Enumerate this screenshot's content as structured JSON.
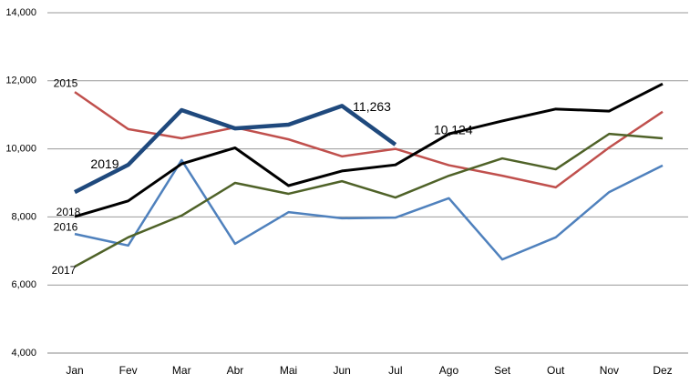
{
  "chart_data": {
    "type": "line",
    "categories": [
      "Jan",
      "Fev",
      "Mar",
      "Abr",
      "Mai",
      "Jun",
      "Jul",
      "Ago",
      "Set",
      "Out",
      "Nov",
      "Dez"
    ],
    "ylim": [
      4000,
      14000
    ],
    "yticks": [
      {
        "value": 4000,
        "label": "4,000"
      },
      {
        "value": 6000,
        "label": "6,000"
      },
      {
        "value": 8000,
        "label": "8,000"
      },
      {
        "value": 10000,
        "label": "10,000"
      },
      {
        "value": 12000,
        "label": "12,000"
      },
      {
        "value": 14000,
        "label": "14,000"
      }
    ],
    "grid": true,
    "series": [
      {
        "name": "2015",
        "color": "#c0504d",
        "values": [
          11670,
          10580,
          10310,
          10630,
          10280,
          9780,
          10000,
          9520,
          9210,
          8870,
          10040,
          11090
        ]
      },
      {
        "name": "2016",
        "color": "#4f81bd",
        "values": [
          7500,
          7160,
          9670,
          7210,
          8140,
          7960,
          7980,
          8550,
          6750,
          7400,
          8730,
          9510
        ]
      },
      {
        "name": "2017",
        "color": "#4f6228",
        "values": [
          6540,
          7400,
          8040,
          9000,
          8680,
          9050,
          8570,
          9210,
          9720,
          9400,
          10440,
          10310
        ]
      },
      {
        "name": "2018",
        "color": "#000000",
        "values": [
          8010,
          8470,
          9560,
          10030,
          8920,
          9350,
          9530,
          10440,
          10820,
          11170,
          11110,
          11910
        ]
      },
      {
        "name": "2019",
        "color": "#1f497d",
        "values": [
          8730,
          9530,
          11140,
          10600,
          10710,
          11263,
          10124,
          null,
          null,
          null,
          null,
          null
        ],
        "value_labels": [
          null,
          null,
          null,
          null,
          null,
          "11,263",
          "10,124",
          null,
          null,
          null,
          null,
          null
        ]
      }
    ]
  }
}
